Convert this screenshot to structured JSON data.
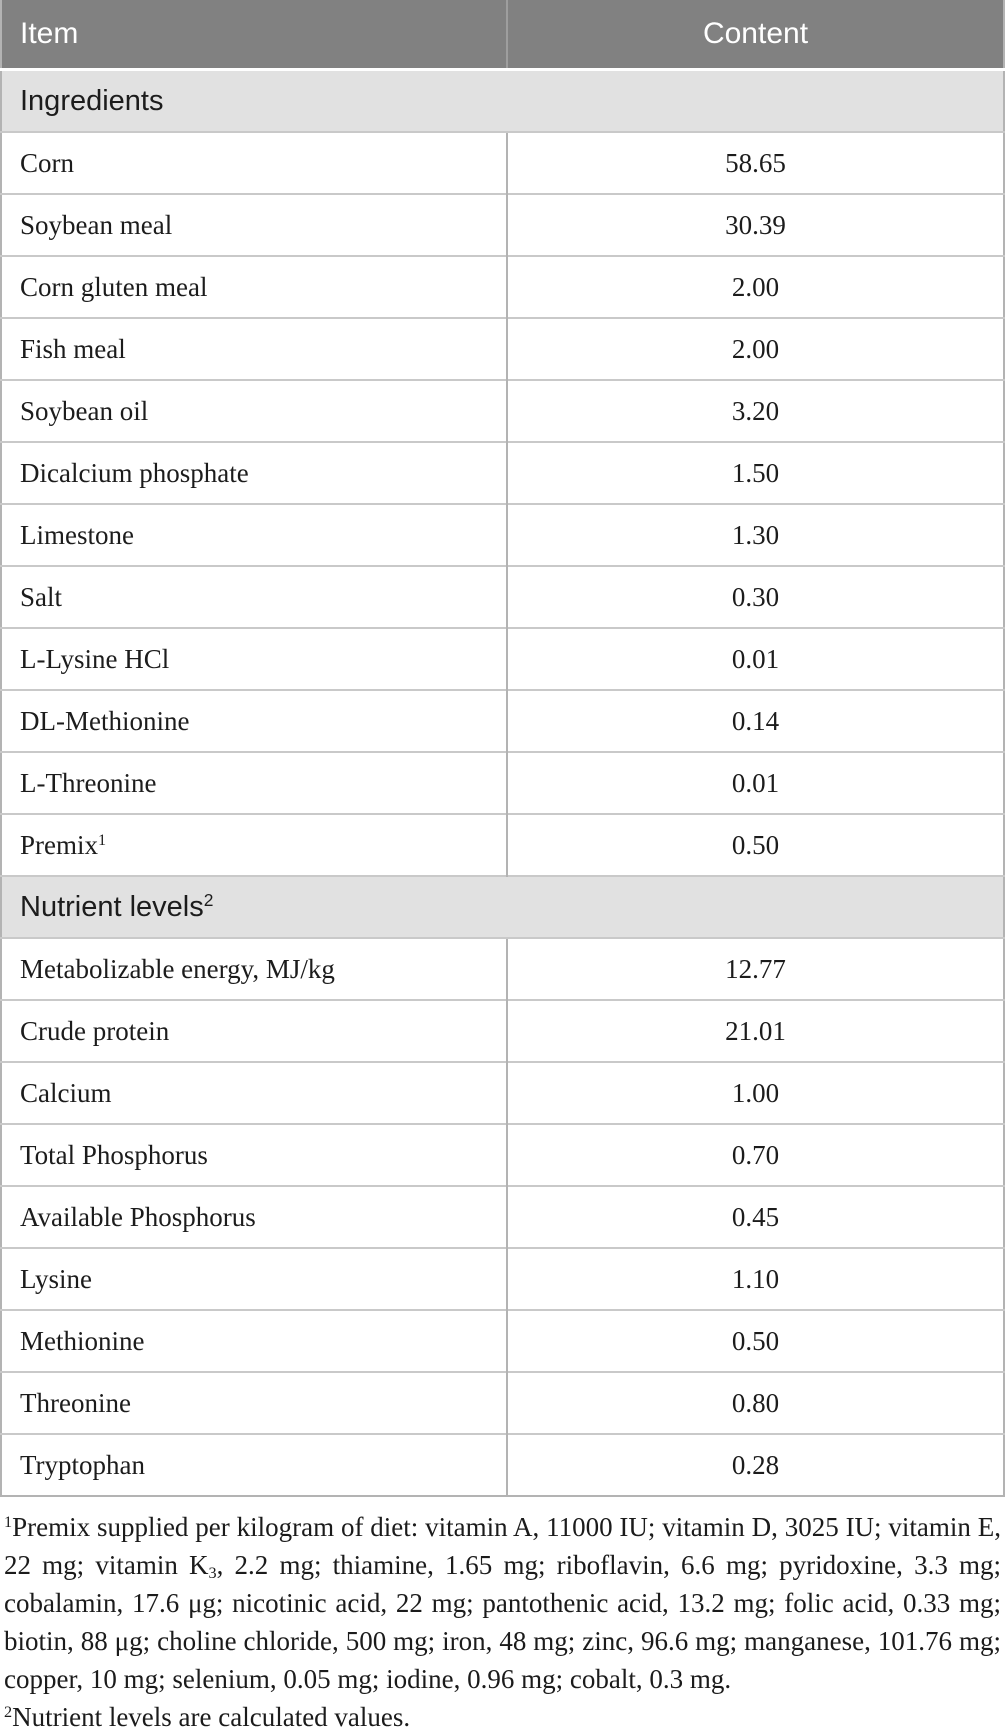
{
  "table": {
    "columns": [
      "Item",
      "Content"
    ],
    "sections": [
      {
        "title": "Ingredients",
        "title_sup": "",
        "rows": [
          {
            "item": "Corn",
            "item_sup": "",
            "content": "58.65"
          },
          {
            "item": "Soybean meal",
            "item_sup": "",
            "content": "30.39"
          },
          {
            "item": "Corn gluten meal",
            "item_sup": "",
            "content": "2.00"
          },
          {
            "item": "Fish meal",
            "item_sup": "",
            "content": "2.00"
          },
          {
            "item": "Soybean oil",
            "item_sup": "",
            "content": "3.20"
          },
          {
            "item": "Dicalcium phosphate",
            "item_sup": "",
            "content": "1.50"
          },
          {
            "item": "Limestone",
            "item_sup": "",
            "content": "1.30"
          },
          {
            "item": "Salt",
            "item_sup": "",
            "content": "0.30"
          },
          {
            "item": "L-Lysine HCl",
            "item_sup": "",
            "content": "0.01"
          },
          {
            "item": "DL-Methionine",
            "item_sup": "",
            "content": "0.14"
          },
          {
            "item": "L-Threonine",
            "item_sup": "",
            "content": "0.01"
          },
          {
            "item": "Premix",
            "item_sup": "1",
            "content": "0.50"
          }
        ]
      },
      {
        "title": "Nutrient levels",
        "title_sup": "2",
        "rows": [
          {
            "item": "Metabolizable energy, MJ/kg",
            "item_sup": "",
            "content": "12.77"
          },
          {
            "item": "Crude protein",
            "item_sup": "",
            "content": "21.01"
          },
          {
            "item": "Calcium",
            "item_sup": "",
            "content": "1.00"
          },
          {
            "item": "Total Phosphorus",
            "item_sup": "",
            "content": "0.70"
          },
          {
            "item": "Available Phosphorus",
            "item_sup": "",
            "content": "0.45"
          },
          {
            "item": "Lysine",
            "item_sup": "",
            "content": "1.10"
          },
          {
            "item": "Methionine",
            "item_sup": "",
            "content": "0.50"
          },
          {
            "item": "Threonine",
            "item_sup": "",
            "content": "0.80"
          },
          {
            "item": "Tryptophan",
            "item_sup": "",
            "content": "0.28"
          }
        ]
      }
    ]
  },
  "footnotes": [
    {
      "segments": [
        {
          "type": "sup",
          "text": "1"
        },
        {
          "type": "text",
          "text": "Premix supplied per kilogram of diet: vitamin A, 11000 IU; vitamin D, 3025 IU; vitamin E, 22 mg; vitamin K"
        },
        {
          "type": "sub",
          "text": "3"
        },
        {
          "type": "text",
          "text": ", 2.2 mg; thiamine, 1.65 mg; riboflavin, 6.6 mg; pyridoxine, 3.3 mg; cobalamin, 17.6 μg; nicotinic acid, 22 mg; pantothenic acid, 13.2 mg; folic acid, 0.33 mg; biotin, 88 μg; choline chloride, 500 mg; iron, 48 mg; zinc, 96.6 mg; manganese, 101.76 mg; copper, 10 mg; selenium, 0.05 mg; iodine, 0.96 mg; cobalt, 0.3 mg."
        }
      ]
    },
    {
      "segments": [
        {
          "type": "sup",
          "text": "2"
        },
        {
          "type": "text",
          "text": "Nutrient levels are calculated values."
        }
      ]
    }
  ],
  "colors": {
    "header_bg": "#818181",
    "header_text": "#ffffff",
    "section_bg": "#e1e1e1",
    "row_separator": "#c9c9c9",
    "column_divider": "#b3b3b3",
    "body_text": "#1c1c1c"
  }
}
